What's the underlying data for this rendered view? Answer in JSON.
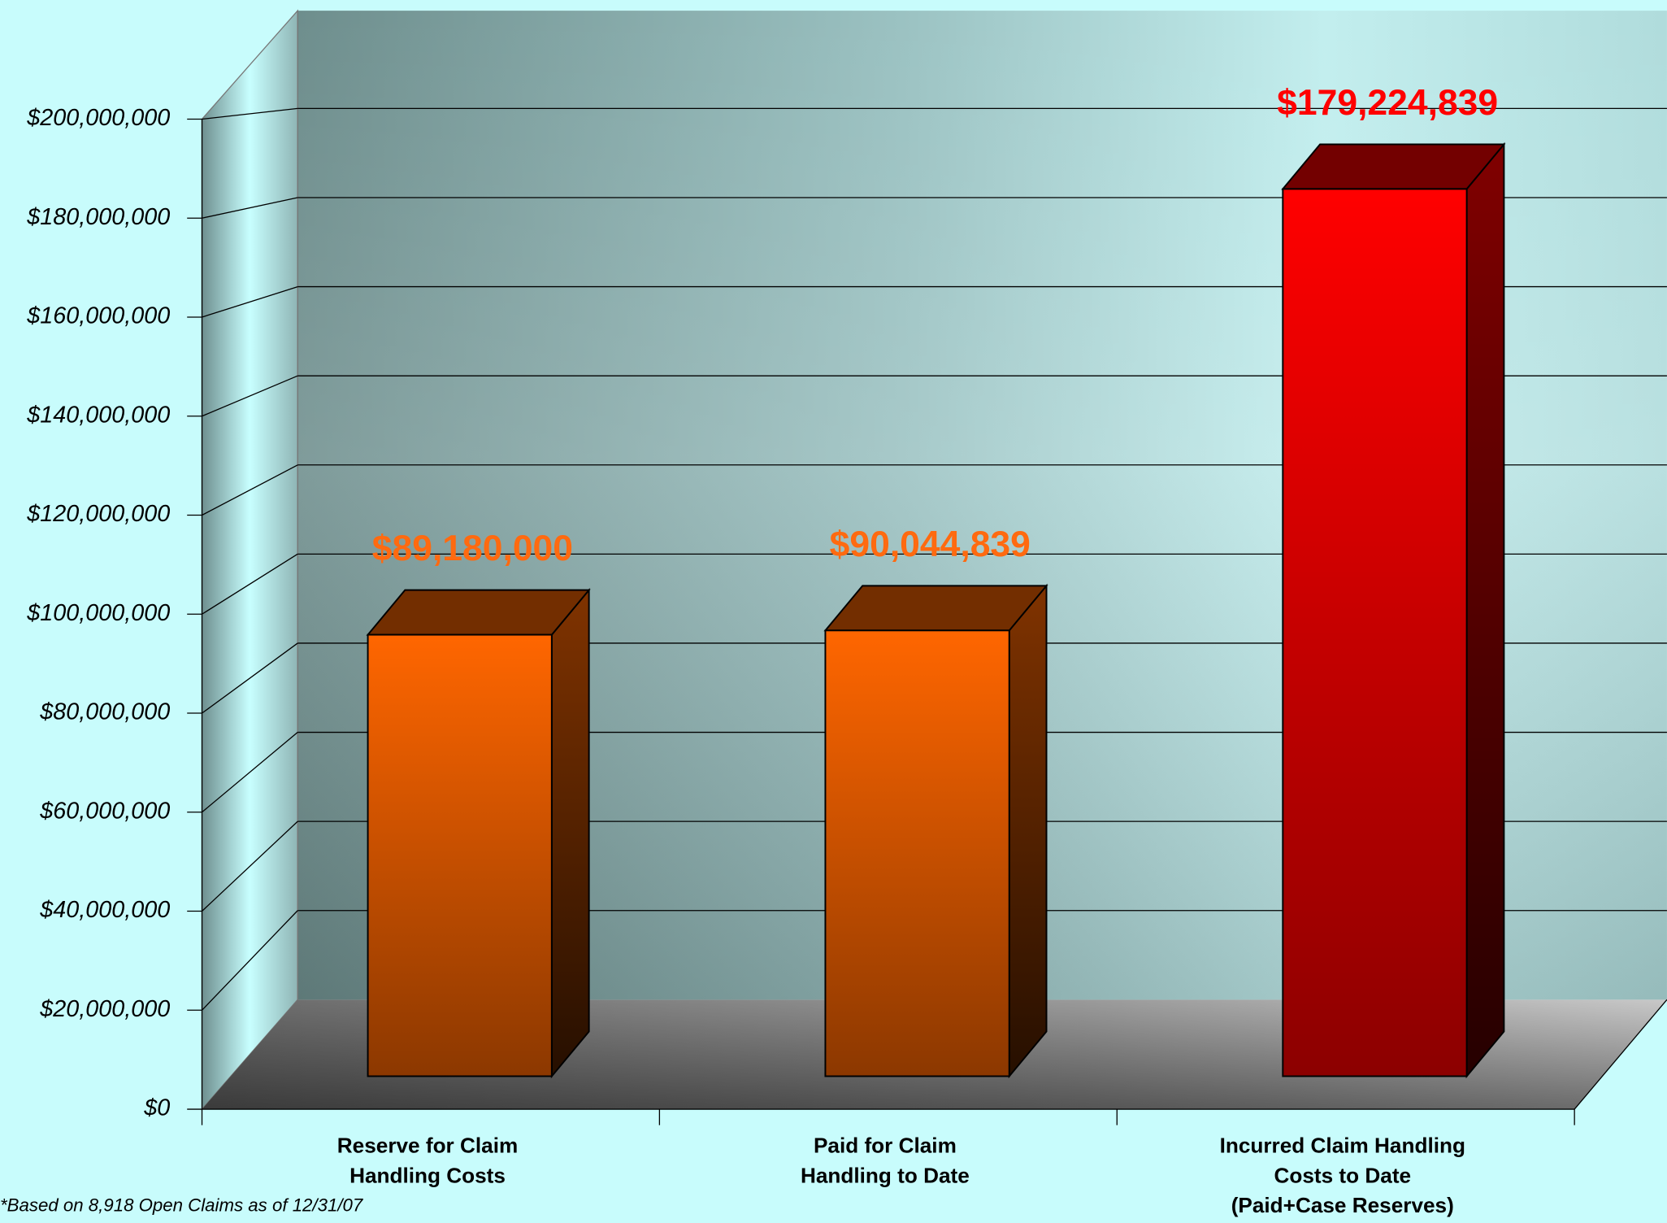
{
  "chart_data": {
    "type": "bar3d",
    "categories": [
      "Reserve for Claim\nHandling Costs",
      "Paid for Claim\nHandling to Date",
      "Incurred Claim Handling\nCosts to Date\n(Paid+Case Reserves)"
    ],
    "values": [
      89180000,
      90044839,
      179224839
    ],
    "value_labels": [
      "$89,180,000",
      "$90,044,839",
      "$179,224,839"
    ],
    "colors": [
      "#ff6600",
      "#ff6600",
      "#ff0000"
    ],
    "label_colors": [
      "#ff6a10",
      "#ff6a10",
      "#ff0000"
    ],
    "ylim": [
      0,
      200000000
    ],
    "yticks": [
      {
        "value": 0,
        "label": "$0"
      },
      {
        "value": 20000000,
        "label": "$20,000,000"
      },
      {
        "value": 40000000,
        "label": "$40,000,000"
      },
      {
        "value": 60000000,
        "label": "$60,000,000"
      },
      {
        "value": 80000000,
        "label": "$80,000,000"
      },
      {
        "value": 100000000,
        "label": "$100,000,000"
      },
      {
        "value": 120000000,
        "label": "$120,000,000"
      },
      {
        "value": 140000000,
        "label": "$140,000,000"
      },
      {
        "value": 160000000,
        "label": "$160,000,000"
      },
      {
        "value": 180000000,
        "label": "$180,000,000"
      },
      {
        "value": 200000000,
        "label": "$200,000,000"
      }
    ],
    "grid": true,
    "footnote": "*Based on 8,918 Open Claims as of 12/31/07"
  }
}
